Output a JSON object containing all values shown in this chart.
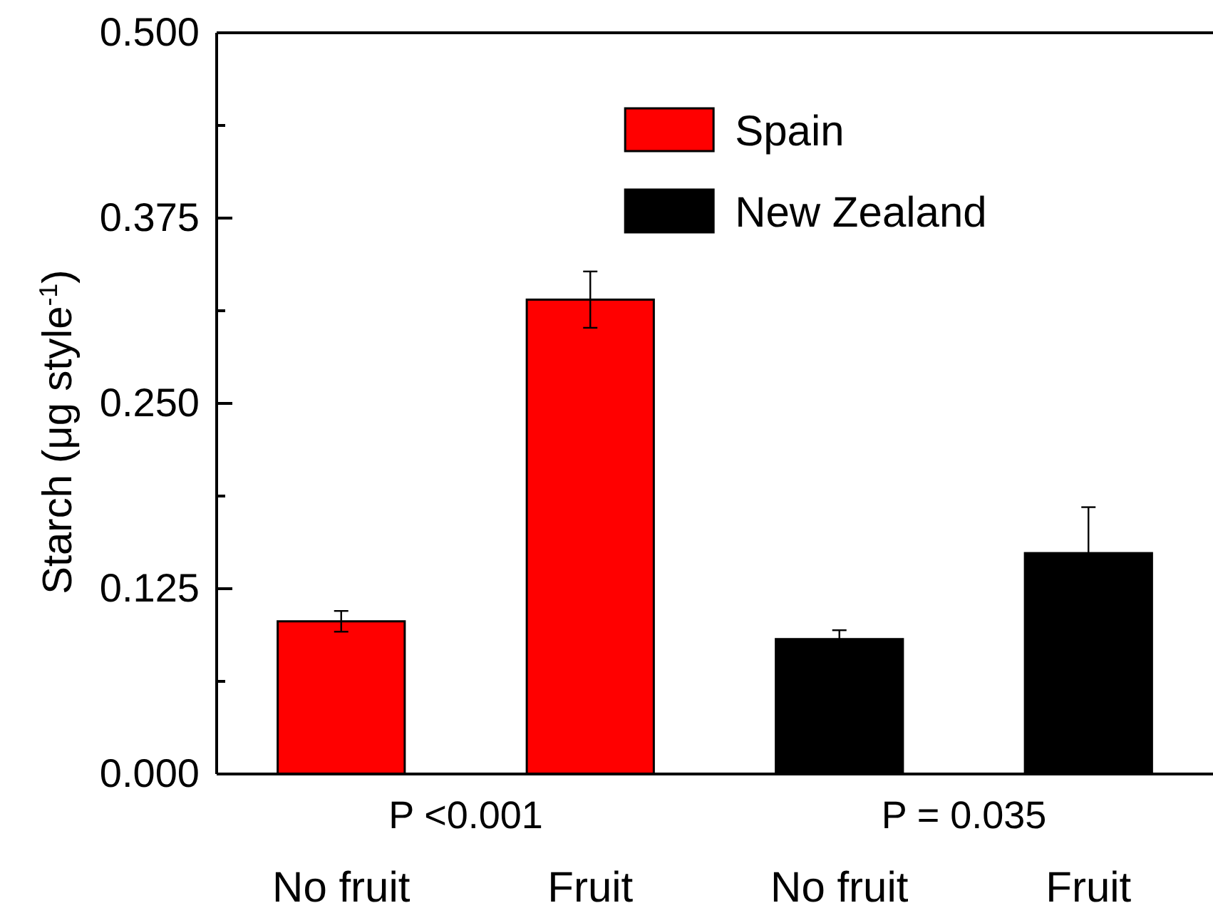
{
  "chart_data": {
    "type": "bar",
    "categories": [
      "No fruit",
      "Fruit",
      "No fruit",
      "Fruit"
    ],
    "series": [
      {
        "name": "Spain",
        "color": "#ff0000",
        "values": [
          0.103,
          0.32,
          null,
          null
        ],
        "errors": [
          0.007,
          0.019,
          null,
          null
        ]
      },
      {
        "name": "New Zealand",
        "color": "#000000",
        "values": [
          null,
          null,
          0.091,
          0.149
        ],
        "errors": [
          null,
          null,
          0.006,
          0.031
        ]
      }
    ],
    "ylabel": "Starch (μg style$^{-1}$)",
    "ylim": [
      0,
      0.5
    ],
    "yticks": [
      {
        "value": 0,
        "label": "0.000"
      },
      {
        "value": 0.0625,
        "label": null
      },
      0.125,
      {
        "value": 0.1875,
        "label": null
      },
      {
        "value": 0.25,
        "label": "0.250"
      },
      {
        "value": 0.3125,
        "label": null
      },
      0.375,
      {
        "value": 0.4375,
        "label": null
      },
      {
        "value": 0.5,
        "label": "0.500"
      }
    ],
    "annotations": [
      "P <0.001",
      "P = 0.035"
    ],
    "legend": "top"
  }
}
